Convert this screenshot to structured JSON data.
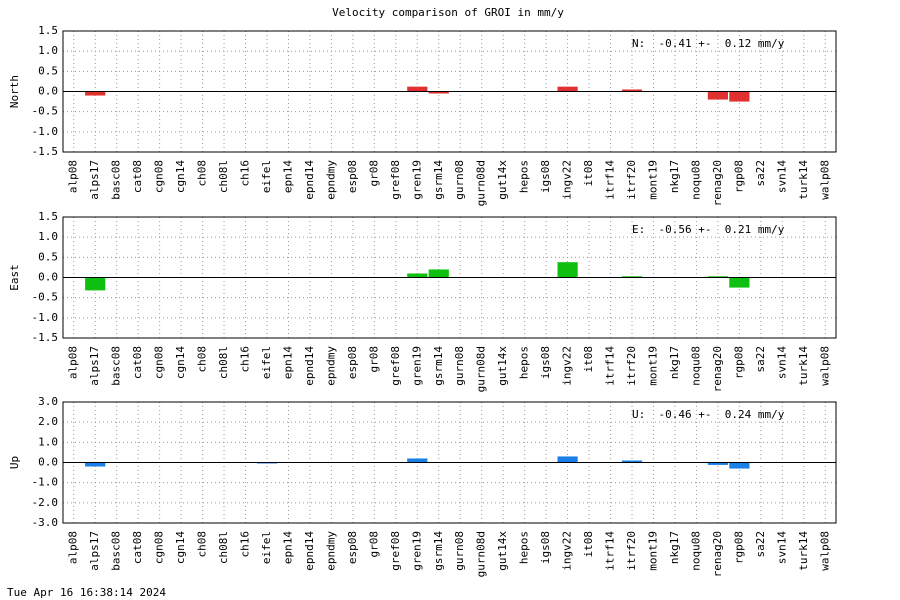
{
  "title": "Velocity comparison of GROI in mm/y",
  "footer": "Tue Apr 16 16:38:14 2024",
  "chart_data": [
    {
      "type": "bar",
      "ylabel": "North",
      "annotation": "N:  -0.41 +-  0.12 mm/y",
      "color": "#e03030",
      "grid": true,
      "categories": [
        "alp08",
        "alps17",
        "basc08",
        "cat08",
        "cgn08",
        "cgn14",
        "ch08",
        "ch08l",
        "ch16",
        "eifel",
        "epn14",
        "epnd14",
        "epndmy",
        "esp08",
        "gr08",
        "gref08",
        "gren19",
        "gsrm14",
        "gurn08",
        "gurn08d",
        "gut14x",
        "hepos",
        "igs08",
        "ingv22",
        "it08",
        "itrf14",
        "itrf20",
        "mont19",
        "nkg17",
        "noqu08",
        "renag20",
        "rgp08",
        "sa22",
        "svn14",
        "turk14",
        "walp08"
      ],
      "values": [
        0,
        -0.1,
        0,
        0,
        0,
        0,
        0,
        0,
        0,
        0,
        0,
        0,
        0,
        0,
        0,
        0,
        0.12,
        -0.05,
        0,
        0,
        0,
        0,
        0,
        0.12,
        0,
        0,
        0.05,
        0,
        0,
        0,
        -0.2,
        -0.25,
        0,
        0,
        0,
        0
      ],
      "ylim": [
        -1.5,
        1.5
      ],
      "yticks": [
        1.5,
        {
          "value": 1.0,
          "label": "1.0"
        },
        0.5,
        {
          "value": 0,
          "label": "0.0"
        },
        -0.5,
        {
          "value": -1.0,
          "label": "-1.0"
        },
        -1.5
      ]
    },
    {
      "type": "bar",
      "ylabel": "East",
      "annotation": "E:  -0.56 +-  0.21 mm/y",
      "color": "#10c010",
      "grid": true,
      "categories": [
        "alp08",
        "alps17",
        "basc08",
        "cat08",
        "cgn08",
        "cgn14",
        "ch08",
        "ch08l",
        "ch16",
        "eifel",
        "epn14",
        "epnd14",
        "epndmy",
        "esp08",
        "gr08",
        "gref08",
        "gren19",
        "gsrm14",
        "gurn08",
        "gurn08d",
        "gut14x",
        "hepos",
        "igs08",
        "ingv22",
        "it08",
        "itrf14",
        "itrf20",
        "mont19",
        "nkg17",
        "noqu08",
        "renag20",
        "rgp08",
        "sa22",
        "svn14",
        "turk14",
        "walp08"
      ],
      "values": [
        0,
        -0.32,
        0,
        0,
        0,
        0,
        0,
        0,
        0,
        0,
        0,
        0,
        0,
        0,
        0,
        0,
        0.1,
        0.2,
        0,
        0,
        0,
        0,
        0,
        0.38,
        0,
        0,
        0.03,
        0,
        0,
        0,
        0.03,
        -0.25,
        0,
        0,
        0,
        0
      ],
      "ylim": [
        -1.5,
        1.5
      ],
      "yticks": [
        1.5,
        {
          "value": 1.0,
          "label": "1.0"
        },
        0.5,
        {
          "value": 0,
          "label": "0.0"
        },
        -0.5,
        {
          "value": -1.0,
          "label": "-1.0"
        },
        -1.5
      ]
    },
    {
      "type": "bar",
      "ylabel": "Up",
      "annotation": "U:  -0.46 +-  0.24 mm/y",
      "color": "#1a80e8",
      "grid": true,
      "categories": [
        "alp08",
        "alps17",
        "basc08",
        "cat08",
        "cgn08",
        "cgn14",
        "ch08",
        "ch08l",
        "ch16",
        "eifel",
        "epn14",
        "epnd14",
        "epndmy",
        "esp08",
        "gr08",
        "gref08",
        "gren19",
        "gsrm14",
        "gurn08",
        "gurn08d",
        "gut14x",
        "hepos",
        "igs08",
        "ingv22",
        "it08",
        "itrf14",
        "itrf20",
        "mont19",
        "nkg17",
        "noqu08",
        "renag20",
        "rgp08",
        "sa22",
        "svn14",
        "turk14",
        "walp08"
      ],
      "values": [
        0,
        -0.2,
        0,
        0,
        0,
        0,
        0,
        0,
        0,
        -0.05,
        0,
        0,
        0,
        0,
        0,
        0,
        0.2,
        0,
        0,
        0,
        0,
        0,
        0,
        0.3,
        0,
        0,
        0.1,
        0,
        0,
        0,
        -0.12,
        -0.3,
        0,
        0,
        0,
        0
      ],
      "ylim": [
        -3,
        3
      ],
      "yticks": [
        {
          "value": 3,
          "label": "3.0"
        },
        {
          "value": 2,
          "label": "2.0"
        },
        {
          "value": 1,
          "label": "1.0"
        },
        {
          "value": 0,
          "label": "0.0"
        },
        {
          "value": -1,
          "label": "-1.0"
        },
        {
          "value": -2,
          "label": "-2.0"
        },
        {
          "value": -3,
          "label": "-3.0"
        }
      ]
    }
  ]
}
